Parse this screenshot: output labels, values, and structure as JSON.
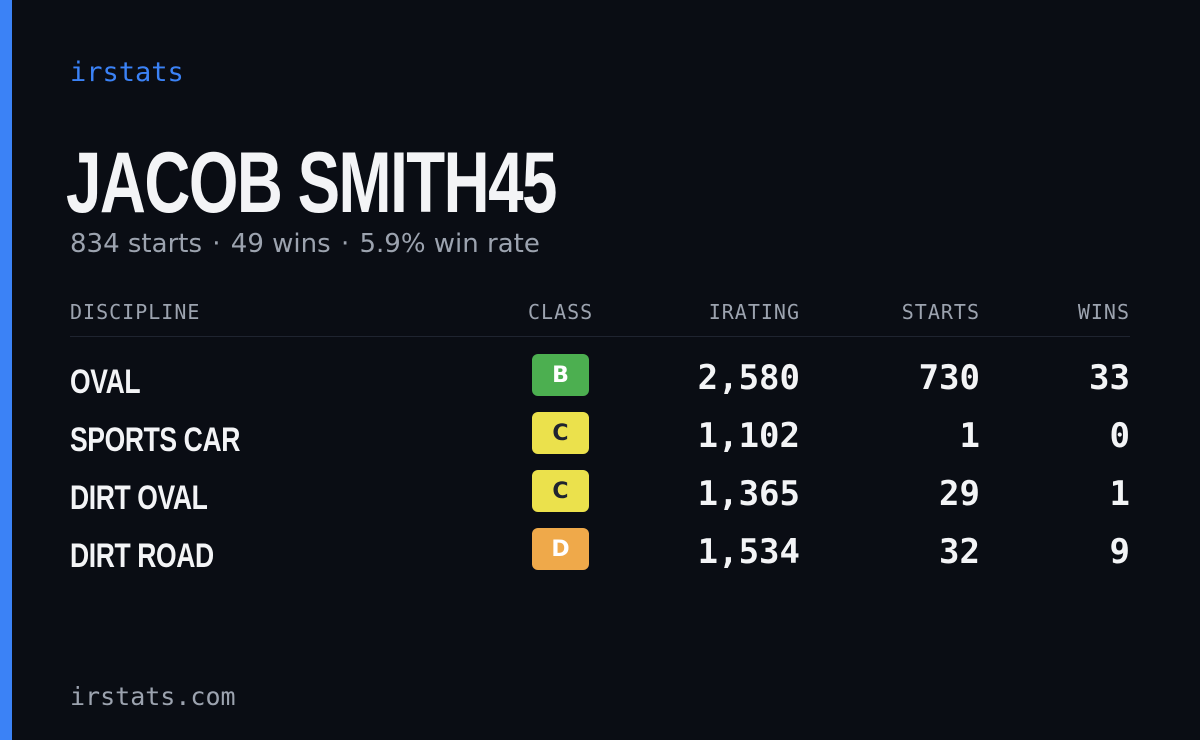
{
  "theme": {
    "background": "#0a0d14",
    "accent": "#3b82f6",
    "text_primary": "#f3f4f6",
    "text_muted": "#9ca3af"
  },
  "brand": "irstats",
  "driver": {
    "name": "JACOB SMITH45",
    "starts_text": "834 starts",
    "wins_text": "49 wins",
    "win_rate_text": "5.9% win rate",
    "separator": "·"
  },
  "table": {
    "headers": {
      "discipline": "DISCIPLINE",
      "class": "CLASS",
      "irating": "IRATING",
      "starts": "STARTS",
      "wins": "WINS"
    },
    "rows": [
      {
        "discipline": "OVAL",
        "class": "B",
        "class_color": "#4caf50",
        "class_text_color": "#ffffff",
        "irating": "2,580",
        "starts": "730",
        "wins": "33"
      },
      {
        "discipline": "SPORTS CAR",
        "class": "C",
        "class_color": "#ebe14c",
        "class_text_color": "#1f2430",
        "irating": "1,102",
        "starts": "1",
        "wins": "0"
      },
      {
        "discipline": "DIRT OVAL",
        "class": "C",
        "class_color": "#ebe14c",
        "class_text_color": "#1f2430",
        "irating": "1,365",
        "starts": "29",
        "wins": "1"
      },
      {
        "discipline": "DIRT ROAD",
        "class": "D",
        "class_color": "#efa94a",
        "class_text_color": "#ffffff",
        "irating": "1,534",
        "starts": "32",
        "wins": "9"
      }
    ]
  },
  "footer": "irstats.com"
}
